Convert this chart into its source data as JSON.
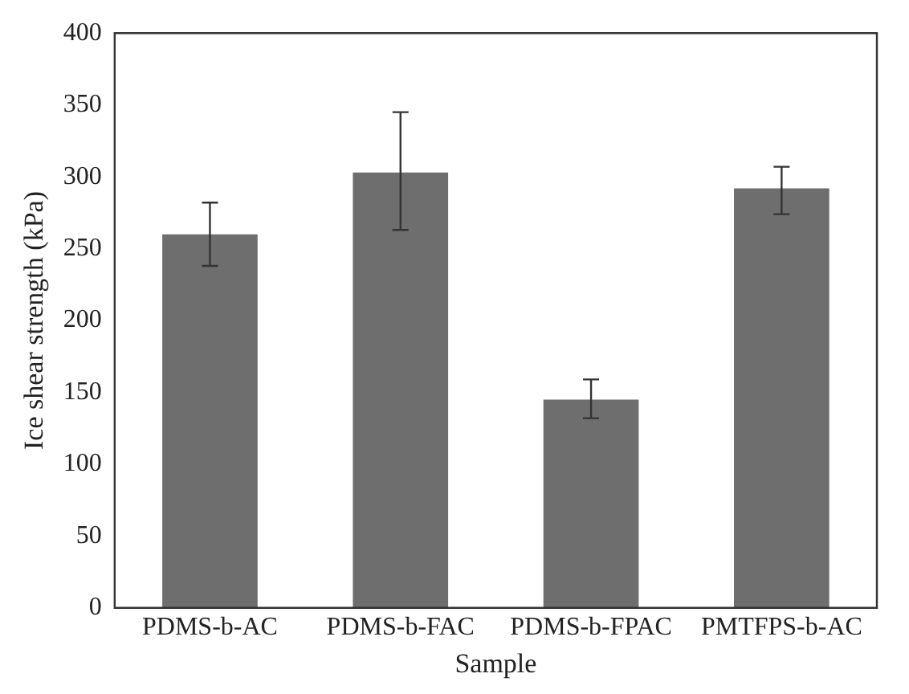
{
  "chart_data": {
    "type": "bar",
    "xlabel": "Sample",
    "ylabel": "Ice shear strength (kPa)",
    "categories": [
      "PDMS-b-AC",
      "PDMS-b-FAC",
      "PDMS-b-FPAC",
      "PMTFPS-b-AC"
    ],
    "values": [
      260,
      303,
      145,
      292
    ],
    "errors": [
      [
        238,
        282
      ],
      [
        263,
        345
      ],
      [
        132,
        159
      ],
      [
        274,
        307
      ]
    ],
    "color": "#6e6e6e",
    "ylim": [
      0,
      400
    ],
    "yticks": [
      0,
      50,
      100,
      150,
      200,
      250,
      300,
      350,
      400
    ],
    "grid": false,
    "legend": false
  }
}
